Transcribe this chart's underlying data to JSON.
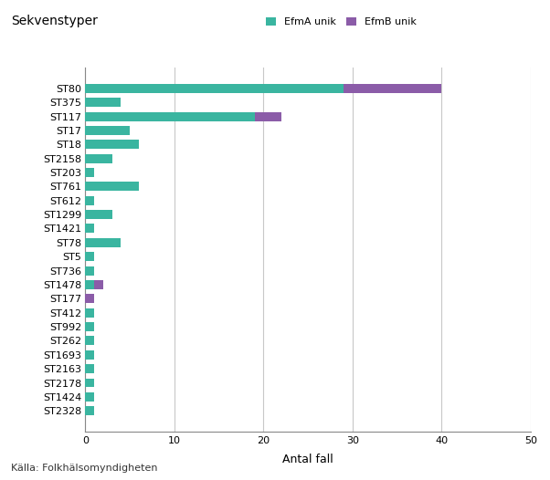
{
  "title": "Sekvenstyper",
  "xlabel": "Antal fall",
  "source": "Källa: Folkhälsomyndigheten",
  "legend_labels": [
    "EfmA unik",
    "EfmB unik"
  ],
  "colors": [
    "#3ab5a0",
    "#8b5ca8"
  ],
  "categories": [
    "ST80",
    "ST375",
    "ST117",
    "ST17",
    "ST18",
    "ST2158",
    "ST203",
    "ST761",
    "ST612",
    "ST1299",
    "ST1421",
    "ST78",
    "ST5",
    "ST736",
    "ST1478",
    "ST177",
    "ST412",
    "ST992",
    "ST262",
    "ST1693",
    "ST2163",
    "ST2178",
    "ST1424",
    "ST2328"
  ],
  "efmA": [
    29,
    4,
    19,
    5,
    6,
    3,
    1,
    6,
    1,
    3,
    1,
    4,
    1,
    1,
    1,
    0,
    1,
    1,
    1,
    1,
    1,
    1,
    1,
    1
  ],
  "efmB": [
    11,
    0,
    3,
    0,
    0,
    0,
    0,
    0,
    0,
    0,
    0,
    0,
    0,
    0,
    1,
    1,
    0,
    0,
    0,
    0,
    0,
    0,
    0,
    0
  ],
  "xlim": [
    0,
    50
  ],
  "xticks": [
    0,
    10,
    20,
    30,
    40,
    50
  ],
  "background_color": "#ffffff",
  "grid_color": "#c8c8c8",
  "bar_height": 0.65,
  "title_fontsize": 10,
  "tick_fontsize": 8,
  "label_fontsize": 9,
  "source_fontsize": 8
}
